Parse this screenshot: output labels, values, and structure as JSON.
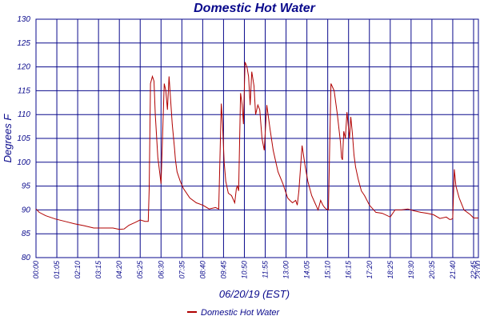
{
  "chart_data": {
    "type": "line",
    "title": "Domestic Hot Water",
    "xlabel": "06/20/19 (EST)",
    "ylabel": "Degrees F",
    "xlim": [
      "00:00",
      "23:00"
    ],
    "ylim": [
      80,
      130
    ],
    "yticks": [
      80,
      85,
      90,
      95,
      100,
      105,
      110,
      115,
      120,
      125,
      130
    ],
    "xticks": [
      "00:00",
      "01:05",
      "02:10",
      "03:15",
      "04:20",
      "05:25",
      "06:30",
      "07:35",
      "08:40",
      "09:45",
      "10:50",
      "11:55",
      "13:00",
      "14:05",
      "15:10",
      "16:15",
      "17:20",
      "18:25",
      "19:30",
      "20:35",
      "21:40",
      "22:45",
      "23:00"
    ],
    "grid": true,
    "legend": "bottom-center",
    "colors": {
      "series": "#b00000",
      "grid": "#0a0a8c",
      "text": "#0a0a8c"
    },
    "series": [
      {
        "name": "Domestic Hot Water",
        "x": [
          "00:00",
          "00:10",
          "00:30",
          "01:00",
          "01:30",
          "02:00",
          "02:30",
          "03:00",
          "03:30",
          "04:00",
          "04:20",
          "04:35",
          "04:50",
          "05:10",
          "05:25",
          "05:40",
          "05:50",
          "05:53",
          "05:57",
          "06:03",
          "06:08",
          "06:12",
          "06:20",
          "06:30",
          "06:40",
          "06:45",
          "06:50",
          "06:55",
          "07:00",
          "07:05",
          "07:12",
          "07:15",
          "07:20",
          "07:30",
          "07:40",
          "08:00",
          "08:20",
          "08:40",
          "09:00",
          "09:20",
          "09:30",
          "09:38",
          "09:42",
          "09:47",
          "09:52",
          "10:00",
          "10:10",
          "10:20",
          "10:25",
          "10:28",
          "10:32",
          "10:38",
          "10:43",
          "10:47",
          "10:52",
          "10:58",
          "11:03",
          "11:08",
          "11:13",
          "11:20",
          "11:25",
          "11:32",
          "11:38",
          "11:45",
          "11:52",
          "12:00",
          "12:10",
          "12:20",
          "12:35",
          "12:50",
          "13:00",
          "13:05",
          "13:12",
          "13:20",
          "13:30",
          "13:35",
          "13:40",
          "13:50",
          "14:00",
          "14:08",
          "14:14",
          "14:20",
          "14:30",
          "14:40",
          "14:48",
          "14:55",
          "15:00",
          "15:05",
          "15:12",
          "15:20",
          "15:30",
          "15:40",
          "15:50",
          "15:53",
          "15:56",
          "16:00",
          "16:05",
          "16:10",
          "16:18",
          "16:22",
          "16:27",
          "16:32",
          "16:37",
          "16:45",
          "16:55",
          "17:05",
          "17:20",
          "17:40",
          "18:00",
          "18:25",
          "18:40",
          "19:00",
          "19:20",
          "19:40",
          "20:00",
          "20:20",
          "20:40",
          "21:00",
          "21:20",
          "21:30",
          "21:35",
          "21:40",
          "21:45",
          "21:50",
          "22:00",
          "22:15",
          "22:35",
          "22:45",
          "23:00"
        ],
        "values": [
          90.2,
          89.5,
          88.8,
          88.1,
          87.6,
          87.1,
          86.7,
          86.2,
          86.2,
          86.2,
          85.9,
          86.0,
          86.8,
          87.4,
          87.9,
          87.6,
          87.6,
          94.5,
          116.5,
          118.0,
          117.0,
          110.0,
          101.0,
          95.5,
          116.5,
          115.0,
          111.0,
          118.0,
          113.0,
          108.0,
          103.0,
          100.5,
          98.0,
          96.0,
          94.5,
          92.5,
          91.5,
          91.0,
          90.2,
          90.5,
          90.2,
          112.3,
          108.0,
          100.0,
          96.0,
          93.5,
          93.0,
          91.5,
          94.5,
          95.0,
          94.0,
          114.5,
          112.0,
          108.0,
          121.0,
          120.0,
          118.0,
          112.0,
          119.0,
          116.0,
          110.0,
          112.0,
          111.0,
          105.0,
          102.5,
          112.0,
          107.0,
          102.5,
          98.0,
          95.5,
          93.5,
          92.5,
          92.0,
          91.5,
          92.0,
          91.0,
          94.0,
          103.5,
          99.0,
          96.0,
          94.5,
          93.0,
          91.5,
          90.0,
          92.0,
          91.0,
          90.5,
          90.2,
          90.0,
          116.5,
          115.0,
          110.0,
          104.0,
          101.0,
          100.5,
          106.5,
          105.0,
          110.5,
          105.0,
          109.5,
          106.0,
          101.5,
          99.0,
          96.5,
          94.0,
          93.0,
          91.0,
          89.5,
          89.3,
          88.5,
          90.0,
          90.0,
          90.2,
          89.8,
          89.5,
          89.3,
          89.0,
          88.2,
          88.5,
          88.0,
          88.0,
          88.2,
          98.5,
          95.0,
          92.5,
          90.0,
          89.0,
          88.3,
          88.3
        ]
      }
    ]
  }
}
